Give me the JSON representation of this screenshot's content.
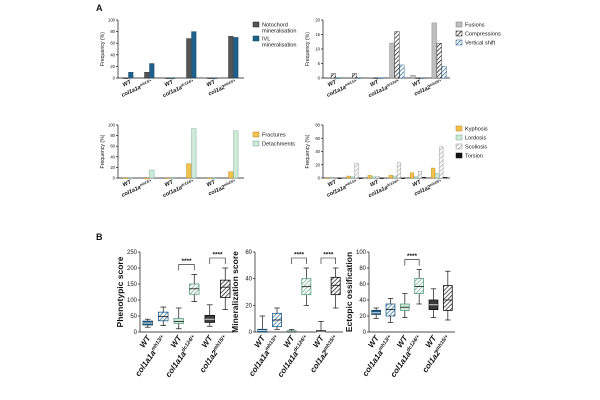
{
  "figure": {
    "panelA": "A",
    "panelB": "B"
  },
  "colors": {
    "notochord": "#555555",
    "ivl": "#1f5f8b",
    "fractures": "#f1c24e",
    "detachments": "#cfe9d8",
    "detachmentsStroke": "#6aa78c",
    "fusions": "#bfbfbf",
    "kyphosis": "#f1c24e",
    "lordosis": "#cfe9d8",
    "scoliosis": "#d9d9d9",
    "torsion": "#111111",
    "blueBox": "#1f5f8b",
    "greenBox": "#cfe9d8",
    "greenStroke": "#5f9e84",
    "darkBox": "#3a3a3a"
  },
  "chart_data": [
    {
      "type": "bar",
      "panel": "A-1",
      "ylabel": "Frequency (%)",
      "ylim": [
        0,
        100
      ],
      "yticks": [
        0,
        20,
        40,
        60,
        80,
        100
      ],
      "categories": [
        "WT",
        "col1a1a^mh13/+",
        "WT",
        "col1a1a^dc124/+",
        "WT",
        "col1a2^mh15/+"
      ],
      "series": [
        {
          "name": "Notochord mineralisation",
          "values": [
            0,
            10,
            0,
            68,
            0,
            72
          ]
        },
        {
          "name": "IVL mineralisation",
          "values": [
            10,
            25,
            0,
            80,
            0,
            70
          ]
        }
      ],
      "legend": [
        "Notochord mineralisation",
        "IVL mineralisation"
      ]
    },
    {
      "type": "bar",
      "panel": "A-2",
      "ylabel": "Frequency (%)",
      "ylim": [
        0,
        20
      ],
      "yticks": [
        0,
        5,
        10,
        15,
        20
      ],
      "categories": [
        "WT",
        "col1a1a^mh13/+",
        "WT",
        "col1a1a^dc124/+",
        "WT",
        "col1a2^mh15/+"
      ],
      "series": [
        {
          "name": "Fusions",
          "values": [
            0,
            0,
            0,
            12,
            1,
            19
          ]
        },
        {
          "name": "Compressions",
          "values": [
            1.5,
            1.5,
            0,
            16,
            0,
            12
          ]
        },
        {
          "name": "Vertical shift",
          "values": [
            0,
            0,
            0,
            4.5,
            0,
            4
          ]
        }
      ],
      "legend": [
        "Fusions",
        "Compressions",
        "Vertical shift"
      ]
    },
    {
      "type": "bar",
      "panel": "A-3",
      "ylabel": "Frequency (%)",
      "ylim": [
        0,
        100
      ],
      "yticks": [
        0,
        20,
        40,
        60,
        80,
        100
      ],
      "categories": [
        "WT",
        "col1a1a^mh13/+",
        "WT",
        "col1a1a^dc124/+",
        "WT",
        "col1a2^mh15/+"
      ],
      "series": [
        {
          "name": "Fractures",
          "values": [
            0,
            0,
            0,
            27,
            0,
            12
          ]
        },
        {
          "name": "Detachments",
          "values": [
            0,
            15,
            0,
            93,
            0,
            89
          ]
        }
      ],
      "legend": [
        "Fractures",
        "Detachments"
      ]
    },
    {
      "type": "bar",
      "panel": "A-4",
      "ylabel": "Frequency (%)",
      "ylim": [
        0,
        80
      ],
      "yticks": [
        0,
        20,
        40,
        60,
        80
      ],
      "categories": [
        "WT",
        "col1a1a^mh13/+",
        "WT",
        "col1a1a^dc124/+",
        "WT",
        "col1a2^mh15/+"
      ],
      "series": [
        {
          "name": "Kyphosis",
          "values": [
            0,
            3,
            4,
            4,
            8,
            15
          ]
        },
        {
          "name": "Lordosis",
          "values": [
            0,
            2,
            2,
            3,
            2,
            7
          ]
        },
        {
          "name": "Scoliosis",
          "values": [
            0,
            22,
            2,
            23,
            10,
            47
          ]
        },
        {
          "name": "Torsion",
          "values": [
            0,
            0,
            0,
            0,
            1,
            1
          ]
        }
      ],
      "legend": [
        "Kyphosis",
        "Lordosis",
        "Scoliosis",
        "Torsion"
      ]
    },
    {
      "type": "box",
      "panel": "B-1",
      "ylabel": "Phenotypic score",
      "ylim": [
        0,
        250
      ],
      "yticks": [
        0,
        50,
        100,
        150,
        200,
        250
      ],
      "categories": [
        "WT",
        "col1a1a^mh13/+",
        "WT",
        "col1a1a^dc124/+",
        "WT",
        "col1a2^mh15/+"
      ],
      "boxes": [
        {
          "min": 15,
          "q1": 22,
          "median": 28,
          "q3": 34,
          "max": 40
        },
        {
          "min": 20,
          "q1": 35,
          "median": 48,
          "q3": 62,
          "max": 78
        },
        {
          "min": 10,
          "q1": 27,
          "median": 33,
          "q3": 42,
          "max": 75
        },
        {
          "min": 95,
          "q1": 118,
          "median": 135,
          "q3": 150,
          "max": 180
        },
        {
          "min": 18,
          "q1": 30,
          "median": 40,
          "q3": 52,
          "max": 85
        },
        {
          "min": 70,
          "q1": 108,
          "median": 140,
          "q3": 162,
          "max": 200
        }
      ],
      "significance": [
        {
          "from": 2,
          "to": 3,
          "label": "****"
        },
        {
          "from": 4,
          "to": 5,
          "label": "****"
        }
      ]
    },
    {
      "type": "box",
      "panel": "B-2",
      "ylabel": "Mineralization score",
      "ylim": [
        0,
        60
      ],
      "yticks": [
        0,
        20,
        40,
        60
      ],
      "categories": [
        "WT",
        "col1a1a^mh13/+",
        "WT",
        "col1a1a^dc124/+",
        "WT",
        "col1a2^mh15/+"
      ],
      "boxes": [
        {
          "min": 0,
          "q1": 0,
          "median": 1,
          "q3": 2,
          "max": 12
        },
        {
          "min": 2,
          "q1": 4,
          "median": 9,
          "q3": 14,
          "max": 18
        },
        {
          "min": 0,
          "q1": 0,
          "median": 0,
          "q3": 1,
          "max": 2
        },
        {
          "min": 20,
          "q1": 28,
          "median": 34,
          "q3": 40,
          "max": 48
        },
        {
          "min": 0,
          "q1": 0,
          "median": 0,
          "q3": 1,
          "max": 8
        },
        {
          "min": 18,
          "q1": 28,
          "median": 35,
          "q3": 41,
          "max": 48
        }
      ],
      "significance": [
        {
          "from": 2,
          "to": 3,
          "label": "****"
        },
        {
          "from": 4,
          "to": 5,
          "label": "****"
        }
      ]
    },
    {
      "type": "box",
      "panel": "B-3",
      "ylabel": "Ectopic ossification",
      "ylim": [
        0,
        100
      ],
      "yticks": [
        0,
        20,
        40,
        60,
        80,
        100
      ],
      "categories": [
        "WT",
        "col1a1a^mh13/+",
        "WT",
        "col1a1a^dc124/+",
        "WT",
        "col1a2^mh15/+"
      ],
      "boxes": [
        {
          "min": 17,
          "q1": 22,
          "median": 24,
          "q3": 27,
          "max": 30
        },
        {
          "min": 12,
          "q1": 20,
          "median": 28,
          "q3": 35,
          "max": 42
        },
        {
          "min": 18,
          "q1": 27,
          "median": 31,
          "q3": 35,
          "max": 48
        },
        {
          "min": 35,
          "q1": 48,
          "median": 57,
          "q3": 67,
          "max": 78
        },
        {
          "min": 18,
          "q1": 28,
          "median": 34,
          "q3": 40,
          "max": 54
        },
        {
          "min": 15,
          "q1": 27,
          "median": 40,
          "q3": 58,
          "max": 76
        }
      ],
      "significance": [
        {
          "from": 2,
          "to": 3,
          "label": "****"
        }
      ]
    }
  ]
}
